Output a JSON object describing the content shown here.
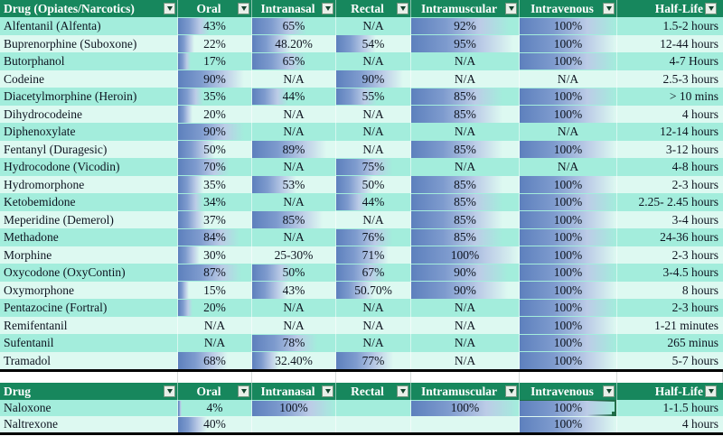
{
  "colors": {
    "header-green": "#17875D",
    "band-dark": "#A3EDDC",
    "band-light": "#DDF9F1",
    "bar-blue": "#5D80BD",
    "select-green": "#1E6B45",
    "text-dark": "#0E1420",
    "divider-black": "#000000",
    "gridline-gray": "#D6DBDA"
  },
  "selection": {
    "table": 1,
    "row": 0,
    "col": 5
  },
  "chart_data": {
    "type": "table",
    "note": "Excel sheet with gradient data bars; bar length equals percent value"
  },
  "tables": [
    {
      "name": "opiates",
      "columns": [
        {
          "key": "drug",
          "label": "Drug (Opiates/Narcotics)"
        },
        {
          "key": "oral",
          "label": "Oral"
        },
        {
          "key": "intranasal",
          "label": "Intranasal"
        },
        {
          "key": "rectal",
          "label": "Rectal"
        },
        {
          "key": "intramuscular",
          "label": "Intramuscular"
        },
        {
          "key": "intravenous",
          "label": "Intravenous"
        },
        {
          "key": "half-life",
          "label": "Half-Life"
        }
      ],
      "rows": [
        {
          "cells": [
            {
              "text": "Alfentanil (Alfenta)"
            },
            {
              "text": "43%",
              "bar": 43
            },
            {
              "text": "65%",
              "bar": 65
            },
            {
              "text": "N/A"
            },
            {
              "text": "92%",
              "bar": 92
            },
            {
              "text": "100%",
              "bar": 100
            },
            {
              "text": "1.5-2 hours"
            }
          ]
        },
        {
          "cells": [
            {
              "text": "Buprenorphine (Suboxone)"
            },
            {
              "text": "22%",
              "bar": 22
            },
            {
              "text": "48.20%",
              "bar": 48.2
            },
            {
              "text": "54%",
              "bar": 54
            },
            {
              "text": "95%",
              "bar": 95
            },
            {
              "text": "100%",
              "bar": 100
            },
            {
              "text": "12-44 hours"
            }
          ]
        },
        {
          "cells": [
            {
              "text": "Butorphanol"
            },
            {
              "text": "17%",
              "bar": 17
            },
            {
              "text": "65%",
              "bar": 65
            },
            {
              "text": "N/A"
            },
            {
              "text": "N/A"
            },
            {
              "text": "100%",
              "bar": 100
            },
            {
              "text": "4-7 Hours"
            }
          ]
        },
        {
          "cells": [
            {
              "text": "Codeine"
            },
            {
              "text": "90%",
              "bar": 90
            },
            {
              "text": "N/A"
            },
            {
              "text": "90%",
              "bar": 90
            },
            {
              "text": "N/A"
            },
            {
              "text": "N/A"
            },
            {
              "text": "2.5-3 hours"
            }
          ]
        },
        {
          "cells": [
            {
              "text": "Diacetylmorphine (Heroin)"
            },
            {
              "text": "35%",
              "bar": 35
            },
            {
              "text": "44%",
              "bar": 44
            },
            {
              "text": "55%",
              "bar": 55
            },
            {
              "text": "85%",
              "bar": 85
            },
            {
              "text": "100%",
              "bar": 100
            },
            {
              "text": "> 10 mins"
            }
          ]
        },
        {
          "cells": [
            {
              "text": "Dihydrocodeine"
            },
            {
              "text": "20%",
              "bar": 20
            },
            {
              "text": "N/A"
            },
            {
              "text": "N/A"
            },
            {
              "text": "85%",
              "bar": 85
            },
            {
              "text": "100%",
              "bar": 100
            },
            {
              "text": "4 hours"
            }
          ]
        },
        {
          "cells": [
            {
              "text": "Diphenoxylate"
            },
            {
              "text": "90%",
              "bar": 90
            },
            {
              "text": "N/A"
            },
            {
              "text": "N/A"
            },
            {
              "text": "N/A"
            },
            {
              "text": "N/A"
            },
            {
              "text": "12-14 hours"
            }
          ]
        },
        {
          "cells": [
            {
              "text": "Fentanyl (Duragesic)"
            },
            {
              "text": "50%",
              "bar": 50
            },
            {
              "text": "89%",
              "bar": 89
            },
            {
              "text": "N/A"
            },
            {
              "text": "85%",
              "bar": 85
            },
            {
              "text": "100%",
              "bar": 100
            },
            {
              "text": "3-12 hours"
            }
          ]
        },
        {
          "cells": [
            {
              "text": "Hydrocodone (Vicodin)"
            },
            {
              "text": "70%",
              "bar": 70
            },
            {
              "text": "N/A"
            },
            {
              "text": "75%",
              "bar": 75
            },
            {
              "text": "N/A"
            },
            {
              "text": "N/A"
            },
            {
              "text": "4-8 hours"
            }
          ]
        },
        {
          "cells": [
            {
              "text": "Hydromorphone"
            },
            {
              "text": "35%",
              "bar": 35
            },
            {
              "text": "53%",
              "bar": 53
            },
            {
              "text": "50%",
              "bar": 50
            },
            {
              "text": "85%",
              "bar": 85
            },
            {
              "text": "100%",
              "bar": 100
            },
            {
              "text": "2-3 hours"
            }
          ]
        },
        {
          "cells": [
            {
              "text": "Ketobemidone"
            },
            {
              "text": "34%",
              "bar": 34
            },
            {
              "text": "N/A"
            },
            {
              "text": "44%",
              "bar": 44
            },
            {
              "text": "85%",
              "bar": 85
            },
            {
              "text": "100%",
              "bar": 100
            },
            {
              "text": "2.25- 2.45 hours"
            }
          ]
        },
        {
          "cells": [
            {
              "text": "Meperidine (Demerol)"
            },
            {
              "text": "37%",
              "bar": 37
            },
            {
              "text": "85%",
              "bar": 85
            },
            {
              "text": "N/A"
            },
            {
              "text": "85%",
              "bar": 85
            },
            {
              "text": "100%",
              "bar": 100
            },
            {
              "text": "3-4 hours"
            }
          ]
        },
        {
          "cells": [
            {
              "text": "Methadone"
            },
            {
              "text": "84%",
              "bar": 84
            },
            {
              "text": "N/A"
            },
            {
              "text": "76%",
              "bar": 76
            },
            {
              "text": "85%",
              "bar": 85
            },
            {
              "text": "100%",
              "bar": 100
            },
            {
              "text": "24-36 hours"
            }
          ]
        },
        {
          "cells": [
            {
              "text": "Morphine"
            },
            {
              "text": "30%",
              "bar": 30
            },
            {
              "text": "25-30%"
            },
            {
              "text": "71%",
              "bar": 71
            },
            {
              "text": "100%",
              "bar": 100
            },
            {
              "text": "100%",
              "bar": 100
            },
            {
              "text": "2-3 hours"
            }
          ]
        },
        {
          "cells": [
            {
              "text": "Oxycodone (OxyContin)"
            },
            {
              "text": "87%",
              "bar": 87
            },
            {
              "text": "50%",
              "bar": 50
            },
            {
              "text": "67%",
              "bar": 67
            },
            {
              "text": "90%",
              "bar": 90
            },
            {
              "text": "100%",
              "bar": 100
            },
            {
              "text": "3-4.5 hours"
            }
          ]
        },
        {
          "cells": [
            {
              "text": "Oxymorphone"
            },
            {
              "text": "15%",
              "bar": 15
            },
            {
              "text": "43%",
              "bar": 43
            },
            {
              "text": "50.70%",
              "bar": 50.7
            },
            {
              "text": "90%",
              "bar": 90
            },
            {
              "text": "100%",
              "bar": 100
            },
            {
              "text": "8 hours"
            }
          ]
        },
        {
          "cells": [
            {
              "text": "Pentazocine (Fortral)"
            },
            {
              "text": "20%",
              "bar": 20
            },
            {
              "text": "N/A"
            },
            {
              "text": "N/A"
            },
            {
              "text": "N/A"
            },
            {
              "text": "100%",
              "bar": 100
            },
            {
              "text": "2-3 hours"
            }
          ]
        },
        {
          "cells": [
            {
              "text": "Remifentanil"
            },
            {
              "text": "N/A"
            },
            {
              "text": "N/A"
            },
            {
              "text": "N/A"
            },
            {
              "text": "N/A"
            },
            {
              "text": "100%",
              "bar": 100
            },
            {
              "text": "1-21 minutes"
            }
          ]
        },
        {
          "cells": [
            {
              "text": "Sufentanil"
            },
            {
              "text": "N/A"
            },
            {
              "text": "78%",
              "bar": 78
            },
            {
              "text": "N/A"
            },
            {
              "text": "N/A"
            },
            {
              "text": "100%",
              "bar": 100
            },
            {
              "text": "265 minus"
            }
          ]
        },
        {
          "cells": [
            {
              "text": "Tramadol"
            },
            {
              "text": "68%",
              "bar": 68
            },
            {
              "text": "32.40%",
              "bar": 32.4
            },
            {
              "text": "77%",
              "bar": 77
            },
            {
              "text": "N/A"
            },
            {
              "text": "100%",
              "bar": 100
            },
            {
              "text": "5-7 hours"
            }
          ]
        }
      ]
    },
    {
      "name": "antagonists",
      "columns": [
        {
          "key": "drug",
          "label": "Drug"
        },
        {
          "key": "oral",
          "label": "Oral"
        },
        {
          "key": "intranasal",
          "label": "Intranasal"
        },
        {
          "key": "rectal",
          "label": "Rectal"
        },
        {
          "key": "intramuscular",
          "label": "Intramuscular"
        },
        {
          "key": "intravenous",
          "label": "Intravenous"
        },
        {
          "key": "half-life",
          "label": "Half-Life"
        }
      ],
      "rows": [
        {
          "cells": [
            {
              "text": "Naloxone"
            },
            {
              "text": "4%",
              "bar": 4
            },
            {
              "text": "100%",
              "bar": 100
            },
            {
              "text": ""
            },
            {
              "text": "100%",
              "bar": 100
            },
            {
              "text": "100%",
              "bar": 100
            },
            {
              "text": "1-1.5 hours"
            }
          ]
        },
        {
          "cells": [
            {
              "text": "Naltrexone"
            },
            {
              "text": "40%",
              "bar": 40
            },
            {
              "text": ""
            },
            {
              "text": ""
            },
            {
              "text": ""
            },
            {
              "text": "100%",
              "bar": 100
            },
            {
              "text": "4 hours"
            }
          ]
        }
      ]
    }
  ]
}
